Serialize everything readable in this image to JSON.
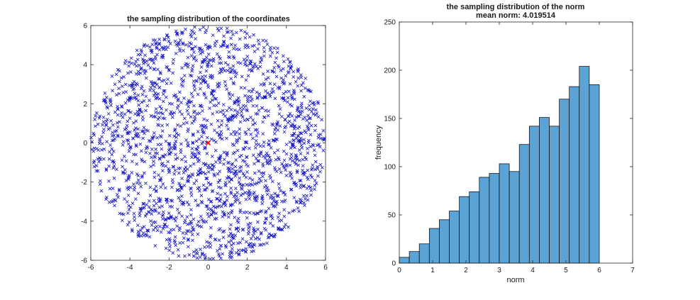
{
  "chart_data": [
    {
      "type": "scatter",
      "title": "the sampling distribution of the coordinates",
      "subtitle": "",
      "xlabel": "",
      "ylabel": "",
      "xlim": [
        -6,
        6
      ],
      "ylim": [
        -6,
        6
      ],
      "xticks": [
        -6,
        -4,
        -2,
        0,
        2,
        4,
        6
      ],
      "yticks": [
        -6,
        -4,
        -2,
        0,
        2,
        4,
        6
      ],
      "grid": false,
      "legend": "none",
      "description_of_points": "about 2000 points uniformly sampled in a disc of radius 6 centred at (0, 0), drawn as blue x markers; the mean (0, 0) drawn as a red marker",
      "sample_count": 2000,
      "disc_radius": 6,
      "marker_color": "#1010c8",
      "center_point": {
        "x": 0,
        "y": 0,
        "color": "#ff0000"
      }
    },
    {
      "type": "bar",
      "title": "the sampling distribution of the norm",
      "subtitle": "mean norm: 4.019514",
      "xlabel": "norm",
      "ylabel": "frequency",
      "xlim": [
        0,
        7
      ],
      "ylim": [
        0,
        250
      ],
      "xticks": [
        0,
        1,
        2,
        3,
        4,
        5,
        6,
        7
      ],
      "yticks": [
        0,
        50,
        100,
        150,
        200,
        250
      ],
      "grid": false,
      "legend": "none",
      "bin_width": 0.3,
      "bin_starts": [
        0,
        0.3,
        0.6,
        0.9,
        1.2,
        1.5,
        1.8,
        2.1,
        2.4,
        2.7,
        3.0,
        3.3,
        3.6,
        3.9,
        4.2,
        4.5,
        4.8,
        5.1,
        5.4,
        5.7
      ],
      "values": [
        6,
        12,
        20,
        36,
        45,
        54,
        69,
        74,
        89,
        93,
        103,
        95,
        123,
        142,
        151,
        142,
        170,
        183,
        204,
        185
      ],
      "bar_color": "#5ba3d4",
      "edge_color": "#000000"
    }
  ]
}
